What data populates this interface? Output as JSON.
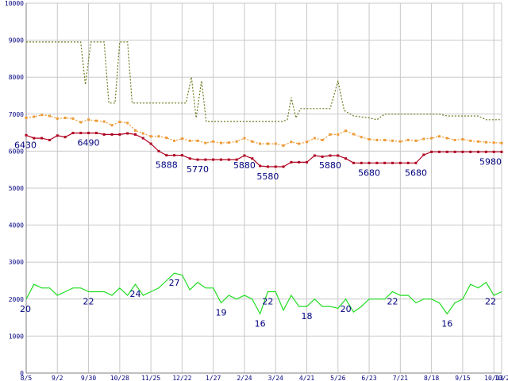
{
  "chart_data": {
    "type": "line",
    "title": "",
    "xlabel": "",
    "ylabel": "",
    "ylim": [
      0,
      10000
    ],
    "grid": true,
    "legend": "none",
    "x_start": "8/5",
    "x_end": "10/20",
    "x_ticks": [
      {
        "label": "8/5",
        "x": 0
      },
      {
        "label": "9/2",
        "x": 4
      },
      {
        "label": "9/30",
        "x": 8
      },
      {
        "label": "10/28",
        "x": 12
      },
      {
        "label": "11/25",
        "x": 16
      },
      {
        "label": "12/22",
        "x": 20
      },
      {
        "label": "1/27",
        "x": 24
      },
      {
        "label": "2/24",
        "x": 28
      },
      {
        "label": "3/24",
        "x": 32
      },
      {
        "label": "4/21",
        "x": 36
      },
      {
        "label": "5/26",
        "x": 40
      },
      {
        "label": "6/23",
        "x": 44
      },
      {
        "label": "7/21",
        "x": 48
      },
      {
        "label": "8/18",
        "x": 52
      },
      {
        "label": "9/15",
        "x": 56
      },
      {
        "label": "10/13",
        "x": 60
      },
      {
        "label": "10/20",
        "x": 61
      }
    ],
    "y_ticks": [
      0,
      1000,
      2000,
      3000,
      4000,
      5000,
      6000,
      7000,
      8000,
      9000,
      10000
    ],
    "series": [
      {
        "color": "#6b7a1e",
        "style": "dotted",
        "marker": "none",
        "points": [
          [
            0,
            8950
          ],
          [
            7,
            8950
          ],
          [
            7.6,
            7800
          ],
          [
            8.3,
            8950
          ],
          [
            10,
            8950
          ],
          [
            10.6,
            7300
          ],
          [
            11.4,
            7300
          ],
          [
            12,
            8950
          ],
          [
            13,
            8950
          ],
          [
            13.6,
            7300
          ],
          [
            20.5,
            7300
          ],
          [
            21.2,
            8000
          ],
          [
            21.8,
            6900
          ],
          [
            22.5,
            7900
          ],
          [
            23.1,
            6800
          ],
          [
            32.8,
            6800
          ],
          [
            33.5,
            6850
          ],
          [
            34,
            7450
          ],
          [
            34.6,
            6900
          ],
          [
            35.2,
            7150
          ],
          [
            39,
            7150
          ],
          [
            40,
            7900
          ],
          [
            40.8,
            7100
          ],
          [
            42,
            6950
          ],
          [
            44,
            6900
          ],
          [
            45,
            6850
          ],
          [
            46,
            7000
          ],
          [
            53,
            7000
          ],
          [
            54,
            6950
          ],
          [
            58,
            6950
          ],
          [
            59,
            6850
          ],
          [
            61,
            6850
          ]
        ]
      },
      {
        "color": "#ee9933",
        "style": "dotted",
        "marker": "square",
        "points": [
          [
            0,
            6900
          ],
          [
            1,
            6930
          ],
          [
            2,
            6980
          ],
          [
            3,
            6950
          ],
          [
            4,
            6880
          ],
          [
            5,
            6900
          ],
          [
            6,
            6880
          ],
          [
            7,
            6780
          ],
          [
            8,
            6850
          ],
          [
            9,
            6820
          ],
          [
            10,
            6800
          ],
          [
            11,
            6700
          ],
          [
            12,
            6790
          ],
          [
            13,
            6760
          ],
          [
            14,
            6560
          ],
          [
            15,
            6480
          ],
          [
            16,
            6400
          ],
          [
            17,
            6400
          ],
          [
            18,
            6360
          ],
          [
            19,
            6280
          ],
          [
            20,
            6340
          ],
          [
            21,
            6280
          ],
          [
            22,
            6280
          ],
          [
            23,
            6220
          ],
          [
            24,
            6260
          ],
          [
            25,
            6220
          ],
          [
            26,
            6230
          ],
          [
            27,
            6260
          ],
          [
            28,
            6350
          ],
          [
            29,
            6260
          ],
          [
            30,
            6200
          ],
          [
            31,
            6200
          ],
          [
            32,
            6200
          ],
          [
            33,
            6150
          ],
          [
            34,
            6250
          ],
          [
            35,
            6200
          ],
          [
            36,
            6250
          ],
          [
            37,
            6350
          ],
          [
            38,
            6300
          ],
          [
            39,
            6450
          ],
          [
            40,
            6450
          ],
          [
            41,
            6550
          ],
          [
            42,
            6460
          ],
          [
            43,
            6380
          ],
          [
            44,
            6320
          ],
          [
            45,
            6300
          ],
          [
            46,
            6300
          ],
          [
            47,
            6280
          ],
          [
            48,
            6260
          ],
          [
            49,
            6300
          ],
          [
            50,
            6280
          ],
          [
            51,
            6330
          ],
          [
            52,
            6350
          ],
          [
            53,
            6400
          ],
          [
            54,
            6350
          ],
          [
            55,
            6300
          ],
          [
            56,
            6320
          ],
          [
            57,
            6280
          ],
          [
            58,
            6260
          ],
          [
            59,
            6240
          ],
          [
            60,
            6230
          ],
          [
            61,
            6220
          ]
        ]
      },
      {
        "color": "#b00020",
        "style": "solid",
        "marker": "square",
        "points": [
          [
            0,
            6430
          ],
          [
            1,
            6350
          ],
          [
            2,
            6350
          ],
          [
            3,
            6300
          ],
          [
            4,
            6420
          ],
          [
            5,
            6380
          ],
          [
            6,
            6490
          ],
          [
            7,
            6490
          ],
          [
            8,
            6490
          ],
          [
            9,
            6490
          ],
          [
            10,
            6450
          ],
          [
            11,
            6450
          ],
          [
            12,
            6450
          ],
          [
            13,
            6480
          ],
          [
            14,
            6450
          ],
          [
            15,
            6350
          ],
          [
            16,
            6200
          ],
          [
            17,
            6000
          ],
          [
            18,
            5888
          ],
          [
            19,
            5888
          ],
          [
            20,
            5888
          ],
          [
            21,
            5800
          ],
          [
            22,
            5770
          ],
          [
            23,
            5770
          ],
          [
            24,
            5770
          ],
          [
            25,
            5770
          ],
          [
            26,
            5770
          ],
          [
            27,
            5770
          ],
          [
            28,
            5880
          ],
          [
            29,
            5800
          ],
          [
            30,
            5600
          ],
          [
            31,
            5580
          ],
          [
            32,
            5580
          ],
          [
            33,
            5580
          ],
          [
            34,
            5700
          ],
          [
            35,
            5700
          ],
          [
            36,
            5700
          ],
          [
            37,
            5880
          ],
          [
            38,
            5850
          ],
          [
            39,
            5880
          ],
          [
            40,
            5880
          ],
          [
            41,
            5800
          ],
          [
            42,
            5680
          ],
          [
            43,
            5680
          ],
          [
            44,
            5680
          ],
          [
            45,
            5680
          ],
          [
            46,
            5680
          ],
          [
            47,
            5680
          ],
          [
            48,
            5680
          ],
          [
            49,
            5680
          ],
          [
            50,
            5680
          ],
          [
            51,
            5900
          ],
          [
            52,
            5980
          ],
          [
            53,
            5980
          ],
          [
            54,
            5980
          ],
          [
            55,
            5980
          ],
          [
            56,
            5980
          ],
          [
            57,
            5980
          ],
          [
            58,
            5980
          ],
          [
            59,
            5980
          ],
          [
            60,
            5980
          ],
          [
            61,
            5980
          ]
        ]
      },
      {
        "color": "#22dd22",
        "style": "solid",
        "marker": "none",
        "points": [
          [
            0,
            2000
          ],
          [
            1,
            2400
          ],
          [
            2,
            2300
          ],
          [
            3,
            2300
          ],
          [
            4,
            2100
          ],
          [
            5,
            2200
          ],
          [
            6,
            2300
          ],
          [
            7,
            2300
          ],
          [
            8,
            2200
          ],
          [
            9,
            2200
          ],
          [
            10,
            2200
          ],
          [
            11,
            2100
          ],
          [
            12,
            2300
          ],
          [
            13,
            2100
          ],
          [
            14,
            2400
          ],
          [
            15,
            2100
          ],
          [
            16,
            2200
          ],
          [
            17,
            2300
          ],
          [
            18,
            2500
          ],
          [
            19,
            2700
          ],
          [
            20,
            2650
          ],
          [
            21,
            2250
          ],
          [
            22,
            2450
          ],
          [
            23,
            2300
          ],
          [
            24,
            2300
          ],
          [
            25,
            1900
          ],
          [
            26,
            2100
          ],
          [
            27,
            2000
          ],
          [
            28,
            2100
          ],
          [
            29,
            2000
          ],
          [
            30,
            1600
          ],
          [
            31,
            2200
          ],
          [
            32,
            2200
          ],
          [
            33,
            1700
          ],
          [
            34,
            2100
          ],
          [
            35,
            1800
          ],
          [
            36,
            1800
          ],
          [
            37,
            2000
          ],
          [
            38,
            1800
          ],
          [
            39,
            1800
          ],
          [
            40,
            1750
          ],
          [
            41,
            2000
          ],
          [
            42,
            1650
          ],
          [
            43,
            1800
          ],
          [
            44,
            2000
          ],
          [
            45,
            2000
          ],
          [
            46,
            2000
          ],
          [
            47,
            2200
          ],
          [
            48,
            2100
          ],
          [
            49,
            2100
          ],
          [
            50,
            1900
          ],
          [
            51,
            2000
          ],
          [
            52,
            2000
          ],
          [
            53,
            1900
          ],
          [
            54,
            1600
          ],
          [
            55,
            1900
          ],
          [
            56,
            2000
          ],
          [
            57,
            2400
          ],
          [
            58,
            2300
          ],
          [
            59,
            2450
          ],
          [
            60,
            2100
          ],
          [
            61,
            2200
          ]
        ]
      }
    ],
    "annotations": [
      {
        "text": "6430",
        "x": 0,
        "y": 6430
      },
      {
        "text": "6490",
        "x": 8,
        "y": 6490
      },
      {
        "text": "5888",
        "x": 18,
        "y": 5888
      },
      {
        "text": "5770",
        "x": 22,
        "y": 5770
      },
      {
        "text": "5880",
        "x": 28,
        "y": 5880
      },
      {
        "text": "5580",
        "x": 31,
        "y": 5580
      },
      {
        "text": "5880",
        "x": 39,
        "y": 5880
      },
      {
        "text": "5680",
        "x": 44,
        "y": 5680
      },
      {
        "text": "5680",
        "x": 50,
        "y": 5680
      },
      {
        "text": "5980",
        "x": 61,
        "y": 5980
      },
      {
        "text": "20",
        "x": 0,
        "y": 2000
      },
      {
        "text": "22",
        "x": 8,
        "y": 2200
      },
      {
        "text": "24",
        "x": 14,
        "y": 2400
      },
      {
        "text": "27",
        "x": 19,
        "y": 2700
      },
      {
        "text": "19",
        "x": 25,
        "y": 1900
      },
      {
        "text": "22",
        "x": 31,
        "y": 2200
      },
      {
        "text": "16",
        "x": 30,
        "y": 1600
      },
      {
        "text": "18",
        "x": 36,
        "y": 1800
      },
      {
        "text": "20",
        "x": 41,
        "y": 2000
      },
      {
        "text": "22",
        "x": 47,
        "y": 2200
      },
      {
        "text": "16",
        "x": 54,
        "y": 1600
      },
      {
        "text": "22",
        "x": 61,
        "y": 2200
      }
    ]
  }
}
